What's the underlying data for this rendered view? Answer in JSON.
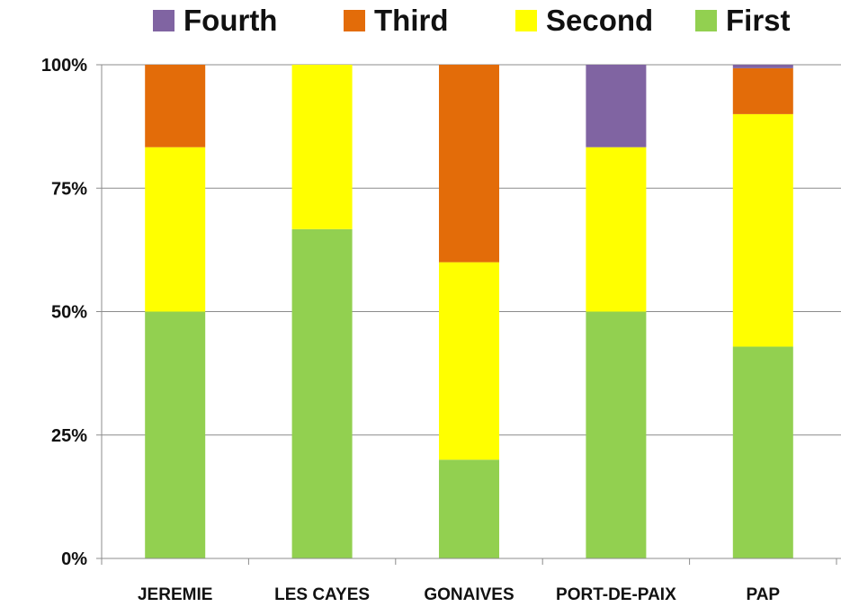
{
  "chart_data": {
    "type": "bar",
    "stacked": true,
    "percent": true,
    "categories": [
      "JEREMIE",
      "LES CAYES",
      "GONAIVES",
      "PORT-DE-PAIX",
      "PAP"
    ],
    "series": [
      {
        "name": "First",
        "color": "#92d050",
        "values": [
          50,
          66.7,
          20,
          50,
          42.9
        ]
      },
      {
        "name": "Second",
        "color": "#ffff00",
        "values": [
          33.3,
          33.3,
          40,
          33.3,
          47.1
        ]
      },
      {
        "name": "Third",
        "color": "#e36c09",
        "values": [
          16.7,
          0,
          40,
          0,
          9.3
        ]
      },
      {
        "name": "Fourth",
        "color": "#8064a2",
        "values": [
          0,
          0,
          0,
          16.7,
          0.7
        ]
      }
    ],
    "yticks": [
      "0%",
      "25%",
      "50%",
      "75%",
      "100%"
    ],
    "ylim": [
      0,
      100
    ],
    "legend_order": [
      "Fourth",
      "Third",
      "Second",
      "First"
    ],
    "legend_position": "top",
    "grid": true,
    "title": "",
    "xlabel": "",
    "ylabel": ""
  }
}
